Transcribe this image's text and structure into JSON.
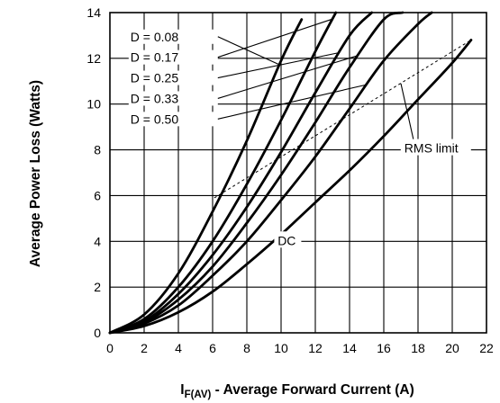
{
  "chart_data": {
    "type": "line",
    "xlabel_main": "I",
    "xlabel_sub": "F(AV)",
    "xlabel_rest": " - Average Forward Current (A)",
    "ylabel": "Average Power Loss (Watts)",
    "xlim": [
      0,
      22
    ],
    "ylim": [
      0,
      14
    ],
    "xticks": [
      0,
      2,
      4,
      6,
      8,
      10,
      12,
      14,
      16,
      18,
      20,
      22
    ],
    "yticks": [
      0,
      2,
      4,
      6,
      8,
      10,
      12,
      14
    ],
    "grid": true,
    "series": [
      {
        "name": "D = 0.08",
        "x": [
          0,
          2,
          4,
          6,
          8,
          10,
          11.2
        ],
        "y": [
          0,
          0.8,
          2.6,
          5.3,
          8.4,
          11.9,
          13.7
        ]
      },
      {
        "name": "D = 0.17",
        "x": [
          0,
          2,
          4,
          6,
          8,
          10,
          12,
          13.2
        ],
        "y": [
          0,
          0.6,
          2.0,
          4.0,
          6.5,
          9.3,
          12.3,
          14.0
        ]
      },
      {
        "name": "D = 0.25",
        "x": [
          0,
          2,
          4,
          6,
          8,
          10,
          12,
          14,
          15.3
        ],
        "y": [
          0,
          0.5,
          1.7,
          3.4,
          5.5,
          7.9,
          10.5,
          13.0,
          14.0
        ]
      },
      {
        "name": "D = 0.33",
        "x": [
          0,
          2,
          4,
          6,
          8,
          10,
          12,
          14,
          16,
          17.1
        ],
        "y": [
          0,
          0.45,
          1.45,
          2.9,
          4.8,
          6.9,
          9.2,
          11.6,
          13.7,
          14.0
        ]
      },
      {
        "name": "D = 0.50",
        "x": [
          0,
          2,
          4,
          6,
          8,
          10,
          12,
          14,
          16,
          18,
          18.8
        ],
        "y": [
          0,
          0.4,
          1.2,
          2.5,
          4.0,
          5.8,
          7.7,
          9.8,
          11.9,
          13.5,
          14.0
        ]
      },
      {
        "name": "DC",
        "x": [
          0,
          2,
          4,
          6,
          8,
          10,
          12,
          14,
          16,
          18,
          20,
          21.1
        ],
        "y": [
          0,
          0.3,
          0.9,
          1.8,
          3.0,
          4.3,
          5.7,
          7.1,
          8.6,
          10.2,
          11.8,
          12.8
        ]
      }
    ],
    "rms_limit": {
      "name": "RMS limit",
      "x": [
        6.1,
        21.1
      ],
      "y": [
        5.9,
        12.8
      ]
    },
    "annotations": [
      "D = 0.08",
      "D = 0.17",
      "D = 0.25",
      "D = 0.33",
      "D = 0.50",
      "DC",
      "RMS limit"
    ]
  }
}
